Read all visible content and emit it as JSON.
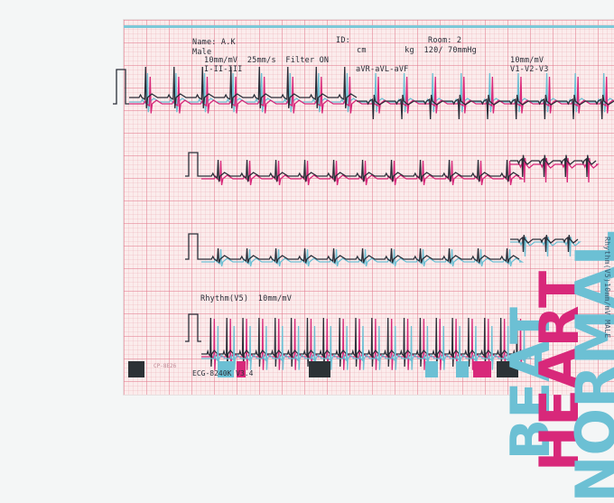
{
  "header": {
    "name": "Name: A.K",
    "id": "ID:",
    "room": "Room: 2",
    "sex": "Male",
    "units": "cm        kg  120/ 70mmHg",
    "gain": "10mm/mV  25mm/s  Filter ON",
    "gain_right": "10mm/mV",
    "lead_group_1": "I-II-III",
    "lead_group_2": "aVR-aVL-aVF",
    "lead_group_3": "V1-V2-V3"
  },
  "rhythm": {
    "label": "Rhythm(V5)  10mm/mV"
  },
  "footer": {
    "model": "ECG-8240K V3.4",
    "code": "CP-8E26"
  },
  "overlay": {
    "word1": "BEAT",
    "word2": "HEART",
    "word3": "NORMAL",
    "vertical_small": "Rhythm(V5)10mm/mV MALE",
    "colors": {
      "cyan": "#6cc0d4",
      "magenta": "#d8287a",
      "dark": "#2a2e38"
    }
  }
}
